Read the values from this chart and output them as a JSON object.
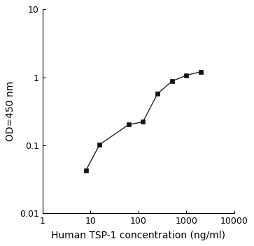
{
  "x": [
    8,
    15.6,
    62.5,
    125,
    250,
    500,
    1000,
    2000
  ],
  "y": [
    0.042,
    0.102,
    0.2,
    0.22,
    0.57,
    0.87,
    1.07,
    1.2
  ],
  "xlim": [
    1,
    10000
  ],
  "ylim": [
    0.01,
    10
  ],
  "xlabel": "Human TSP-1 concentration (ng/ml)",
  "ylabel": "OD=450 nm",
  "xticks": [
    1,
    10,
    100,
    1000,
    10000
  ],
  "xtick_labels": [
    "1",
    "10",
    "100",
    "1000",
    "10000"
  ],
  "yticks": [
    0.01,
    0.1,
    1,
    10
  ],
  "ytick_labels": [
    "0.01",
    "0.1",
    "1",
    "10"
  ],
  "line_color": "#222222",
  "marker": "s",
  "marker_size": 4,
  "marker_facecolor": "#111111",
  "linewidth": 1.0,
  "background_color": "#ffffff",
  "xlabel_fontsize": 10,
  "ylabel_fontsize": 10,
  "tick_fontsize": 9
}
